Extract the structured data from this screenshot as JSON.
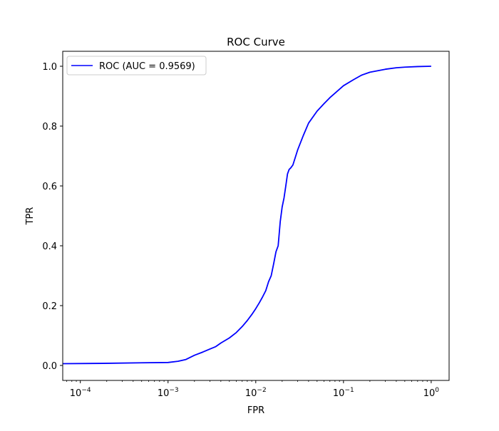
{
  "chart_data": {
    "type": "line",
    "title": "ROC Curve",
    "xlabel": "FPR",
    "ylabel": "TPR",
    "xscale": "log",
    "xlim": [
      6.3e-05,
      1.6
    ],
    "ylim": [
      -0.05,
      1.05
    ],
    "grid": false,
    "legend_position": "upper-left",
    "x_ticks": [
      {
        "value": 0.0001,
        "base": "10",
        "exp": "−4"
      },
      {
        "value": 0.001,
        "base": "10",
        "exp": "−3"
      },
      {
        "value": 0.01,
        "base": "10",
        "exp": "−2"
      },
      {
        "value": 0.1,
        "base": "10",
        "exp": "−1"
      },
      {
        "value": 1,
        "base": "10",
        "exp": "0"
      }
    ],
    "y_ticks": [
      {
        "value": 0.0,
        "label": "0.0"
      },
      {
        "value": 0.2,
        "label": "0.2"
      },
      {
        "value": 0.4,
        "label": "0.4"
      },
      {
        "value": 0.6,
        "label": "0.6"
      },
      {
        "value": 0.8,
        "label": "0.8"
      },
      {
        "value": 1.0,
        "label": "1.0"
      }
    ],
    "series": [
      {
        "name": "ROC (AUC = 0.9569)",
        "color": "#0000ff",
        "x": [
          6.3e-05,
          0.00018,
          0.0005,
          0.001,
          0.0013,
          0.0016,
          0.002,
          0.0025,
          0.003,
          0.0035,
          0.004,
          0.005,
          0.006,
          0.007,
          0.008,
          0.009,
          0.01,
          0.011,
          0.012,
          0.013,
          0.014,
          0.015,
          0.016,
          0.017,
          0.018,
          0.0185,
          0.019,
          0.02,
          0.021,
          0.022,
          0.023,
          0.024,
          0.025,
          0.0265,
          0.03,
          0.035,
          0.04,
          0.05,
          0.06,
          0.07,
          0.08,
          0.1,
          0.13,
          0.16,
          0.2,
          0.3,
          0.4,
          0.5,
          0.7,
          1.0
        ],
        "y": [
          0.006,
          0.007,
          0.009,
          0.01,
          0.014,
          0.02,
          0.034,
          0.045,
          0.055,
          0.063,
          0.075,
          0.092,
          0.11,
          0.13,
          0.15,
          0.17,
          0.19,
          0.21,
          0.23,
          0.25,
          0.28,
          0.3,
          0.34,
          0.38,
          0.4,
          0.44,
          0.48,
          0.53,
          0.56,
          0.6,
          0.64,
          0.655,
          0.66,
          0.67,
          0.72,
          0.77,
          0.81,
          0.85,
          0.875,
          0.895,
          0.91,
          0.935,
          0.955,
          0.97,
          0.98,
          0.99,
          0.995,
          0.997,
          0.999,
          1.0
        ]
      }
    ]
  }
}
